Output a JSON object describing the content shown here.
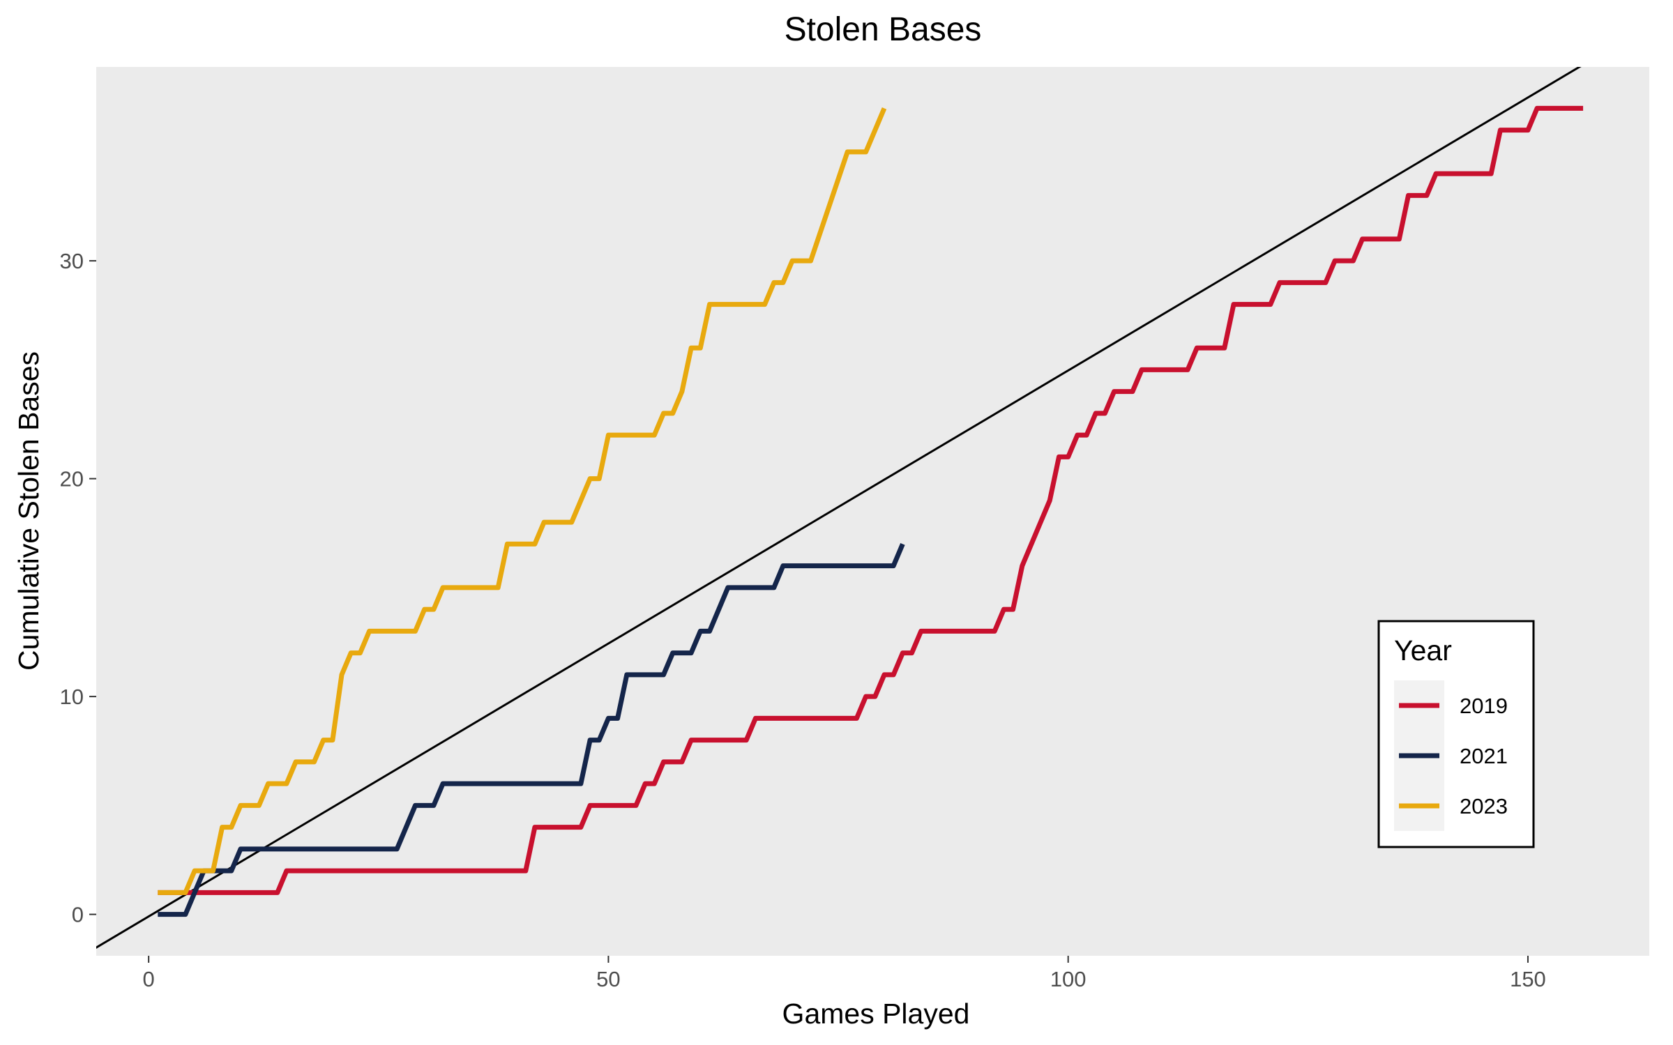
{
  "chart_data": {
    "type": "line",
    "title": "Stolen Bases",
    "xlabel": "Games Played",
    "ylabel": "Cumulative Stolen Bases",
    "xlim": [
      -5.7,
      163.2
    ],
    "ylim": [
      -1.9,
      38.9
    ],
    "xticks": [
      0,
      50,
      100,
      150
    ],
    "yticks": [
      0,
      10,
      20,
      30
    ],
    "grid": false,
    "background": "#ebebeb",
    "legend": {
      "title": "Year",
      "placement": "bottom-right"
    },
    "reference_line": {
      "color": "#000000",
      "points": [
        [
          -6,
          -1.6
        ],
        [
          156,
          39
        ]
      ]
    },
    "series": [
      {
        "name": "2019",
        "color": "#c8102e",
        "points": [
          [
            1,
            1
          ],
          [
            14,
            1
          ],
          [
            15,
            2
          ],
          [
            41,
            2
          ],
          [
            42,
            4
          ],
          [
            47,
            4
          ],
          [
            48,
            5
          ],
          [
            53,
            5
          ],
          [
            54,
            6
          ],
          [
            55,
            6
          ],
          [
            56,
            7
          ],
          [
            58,
            7
          ],
          [
            59,
            8
          ],
          [
            65,
            8
          ],
          [
            66,
            9
          ],
          [
            77,
            9
          ],
          [
            78,
            10
          ],
          [
            79,
            10
          ],
          [
            80,
            11
          ],
          [
            81,
            11
          ],
          [
            82,
            12
          ],
          [
            83,
            12
          ],
          [
            84,
            13
          ],
          [
            92,
            13
          ],
          [
            93,
            14
          ],
          [
            94,
            14
          ],
          [
            95,
            16
          ],
          [
            98,
            19
          ],
          [
            99,
            21
          ],
          [
            100,
            21
          ],
          [
            101,
            22
          ],
          [
            102,
            22
          ],
          [
            103,
            23
          ],
          [
            104,
            23
          ],
          [
            105,
            24
          ],
          [
            107,
            24
          ],
          [
            108,
            25
          ],
          [
            113,
            25
          ],
          [
            114,
            26
          ],
          [
            117,
            26
          ],
          [
            118,
            28
          ],
          [
            122,
            28
          ],
          [
            123,
            29
          ],
          [
            128,
            29
          ],
          [
            129,
            30
          ],
          [
            131,
            30
          ],
          [
            132,
            31
          ],
          [
            136,
            31
          ],
          [
            137,
            33
          ],
          [
            139,
            33
          ],
          [
            140,
            34
          ],
          [
            146,
            34
          ],
          [
            147,
            36
          ],
          [
            150,
            36
          ],
          [
            151,
            37
          ],
          [
            156,
            37
          ]
        ]
      },
      {
        "name": "2021",
        "color": "#14254a",
        "points": [
          [
            1,
            0
          ],
          [
            4,
            0
          ],
          [
            6,
            2
          ],
          [
            9,
            2
          ],
          [
            10,
            3
          ],
          [
            27,
            3
          ],
          [
            29,
            5
          ],
          [
            31,
            5
          ],
          [
            32,
            6
          ],
          [
            47,
            6
          ],
          [
            48,
            8
          ],
          [
            49,
            8
          ],
          [
            50,
            9
          ],
          [
            51,
            9
          ],
          [
            52,
            11
          ],
          [
            56,
            11
          ],
          [
            57,
            12
          ],
          [
            59,
            12
          ],
          [
            60,
            13
          ],
          [
            61,
            13
          ],
          [
            63,
            15
          ],
          [
            68,
            15
          ],
          [
            69,
            16
          ],
          [
            81,
            16
          ],
          [
            82,
            17
          ]
        ]
      },
      {
        "name": "2023",
        "color": "#e8a90e",
        "points": [
          [
            1,
            1
          ],
          [
            4,
            1
          ],
          [
            5,
            2
          ],
          [
            7,
            2
          ],
          [
            8,
            4
          ],
          [
            9,
            4
          ],
          [
            10,
            5
          ],
          [
            12,
            5
          ],
          [
            13,
            6
          ],
          [
            15,
            6
          ],
          [
            16,
            7
          ],
          [
            18,
            7
          ],
          [
            19,
            8
          ],
          [
            20,
            8
          ],
          [
            21,
            11
          ],
          [
            22,
            12
          ],
          [
            23,
            12
          ],
          [
            24,
            13
          ],
          [
            29,
            13
          ],
          [
            30,
            14
          ],
          [
            31,
            14
          ],
          [
            32,
            15
          ],
          [
            38,
            15
          ],
          [
            39,
            17
          ],
          [
            42,
            17
          ],
          [
            43,
            18
          ],
          [
            46,
            18
          ],
          [
            48,
            20
          ],
          [
            49,
            20
          ],
          [
            50,
            22
          ],
          [
            55,
            22
          ],
          [
            56,
            23
          ],
          [
            57,
            23
          ],
          [
            58,
            24
          ],
          [
            59,
            26
          ],
          [
            60,
            26
          ],
          [
            61,
            28
          ],
          [
            67,
            28
          ],
          [
            68,
            29
          ],
          [
            69,
            29
          ],
          [
            70,
            30
          ],
          [
            72,
            30
          ],
          [
            76,
            35
          ],
          [
            78,
            35
          ],
          [
            80,
            37
          ]
        ]
      }
    ]
  }
}
